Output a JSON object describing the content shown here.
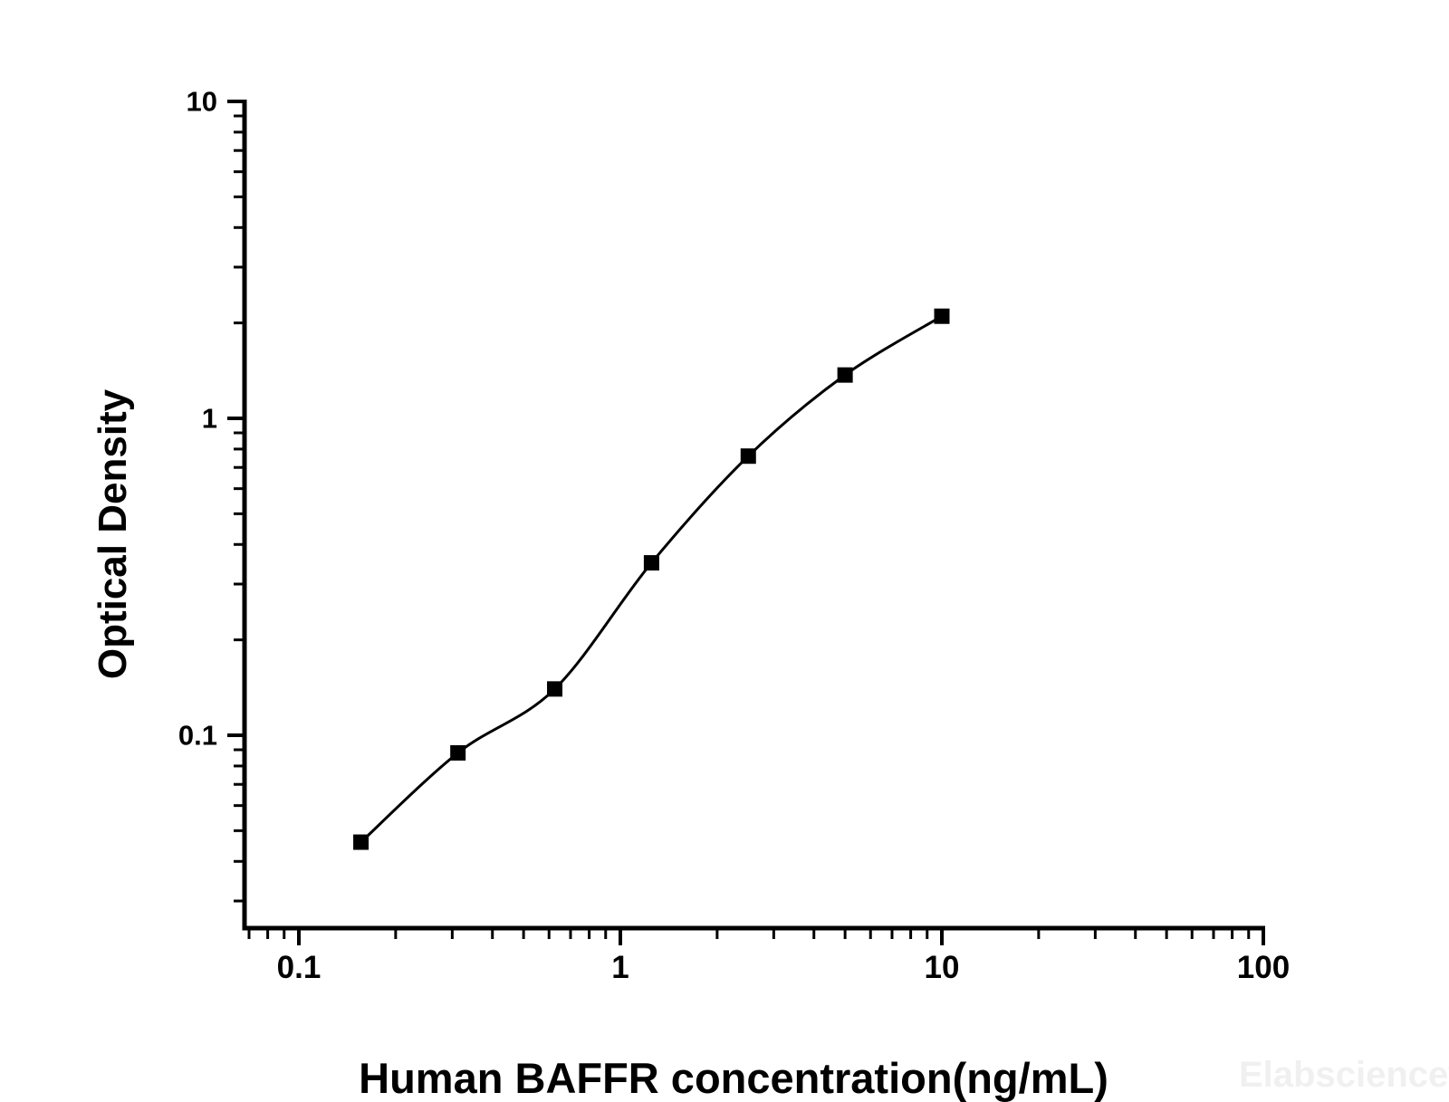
{
  "chart_data": {
    "type": "scatter",
    "title": "",
    "xlabel": "Human BAFFR concentration(ng/mL)",
    "ylabel": "Optical Density",
    "x_scale": "log",
    "y_scale": "log",
    "xlim": [
      0.068,
      100
    ],
    "ylim": [
      0.0245,
      10
    ],
    "grid": false,
    "legend": "none",
    "marker": "filled-square",
    "fit": "smooth sigmoidal standard-curve fit through points",
    "x_major_ticks": [
      0.1,
      1,
      10,
      100
    ],
    "x_major_labels": [
      "0.1",
      "1",
      "10",
      "100"
    ],
    "x_minor_ticks": [
      0.07,
      0.08,
      0.09,
      0.2,
      0.3,
      0.4,
      0.5,
      0.6,
      0.7,
      0.8,
      0.9,
      2,
      3,
      4,
      5,
      6,
      7,
      8,
      9,
      20,
      30,
      40,
      50,
      60,
      70,
      80,
      90
    ],
    "y_major_ticks": [
      0.1,
      1,
      10
    ],
    "y_major_labels": [
      "0.1",
      "1",
      "10"
    ],
    "y_minor_ticks": [
      0.03,
      0.04,
      0.05,
      0.06,
      0.07,
      0.08,
      0.09,
      0.2,
      0.3,
      0.4,
      0.5,
      0.6,
      0.7,
      0.8,
      0.9,
      2,
      3,
      4,
      5,
      6,
      7,
      8,
      9
    ],
    "points": [
      {
        "x": 0.156,
        "y": 0.046
      },
      {
        "x": 0.3125,
        "y": 0.088
      },
      {
        "x": 0.625,
        "y": 0.14
      },
      {
        "x": 1.25,
        "y": 0.35
      },
      {
        "x": 2.5,
        "y": 0.76
      },
      {
        "x": 5,
        "y": 1.37
      },
      {
        "x": 10,
        "y": 2.1
      }
    ]
  },
  "watermark": {
    "text": "Elabscience",
    "registered": "®",
    "color": "#f0f0f0"
  },
  "colors": {
    "background": "#ffffff",
    "axis": "#000000",
    "marker": "#000000",
    "curve": "#000000"
  }
}
